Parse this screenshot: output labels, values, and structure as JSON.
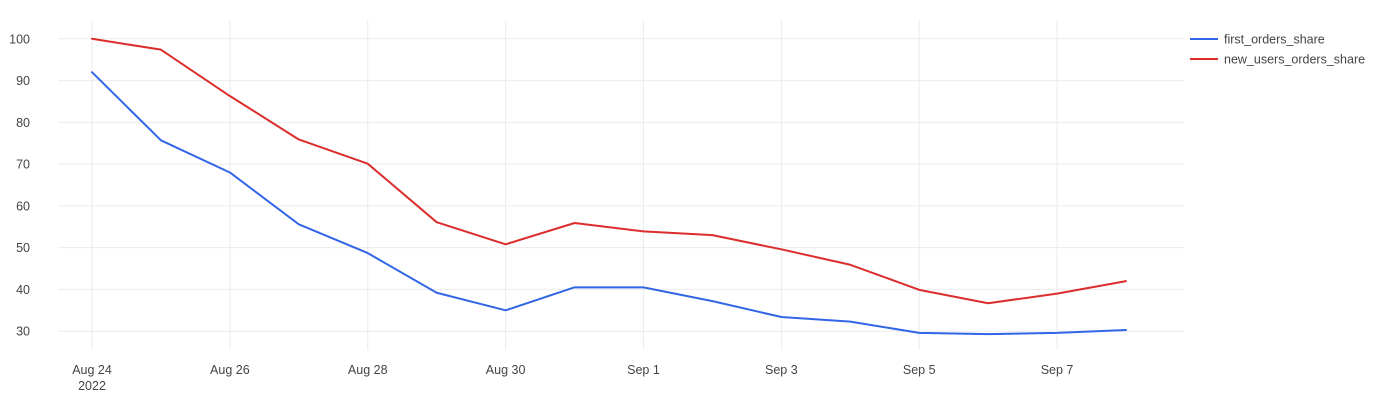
{
  "chart_data": {
    "type": "line",
    "title": "",
    "xlabel": "",
    "ylabel": "",
    "x": [
      "2022-08-24",
      "2022-08-25",
      "2022-08-26",
      "2022-08-27",
      "2022-08-28",
      "2022-08-29",
      "2022-08-30",
      "2022-08-31",
      "2022-09-01",
      "2022-09-02",
      "2022-09-03",
      "2022-09-04",
      "2022-09-05",
      "2022-09-06",
      "2022-09-07",
      "2022-09-08"
    ],
    "xticks": [
      {
        "index": 0,
        "label": "Aug 24",
        "sublabel": "2022"
      },
      {
        "index": 2,
        "label": "Aug 26"
      },
      {
        "index": 4,
        "label": "Aug 28"
      },
      {
        "index": 6,
        "label": "Aug 30"
      },
      {
        "index": 8,
        "label": "Sep 1"
      },
      {
        "index": 10,
        "label": "Sep 3"
      },
      {
        "index": 12,
        "label": "Sep 5"
      },
      {
        "index": 14,
        "label": "Sep 7"
      }
    ],
    "yticks": [
      30,
      40,
      50,
      60,
      70,
      80,
      90,
      100
    ],
    "ylim": [
      25.5,
      104.5
    ],
    "grid": true,
    "legend_position": "top-right",
    "series": [
      {
        "name": "first_orders_share",
        "color": "#3366e6",
        "values": [
          92,
          75.7,
          68,
          55.6,
          48.7,
          39.2,
          35,
          40.5,
          40.5,
          37.2,
          33.4,
          32.3,
          29.6,
          29.3,
          29.6,
          30.3
        ]
      },
      {
        "name": "new_users_orders_share",
        "color": "#dc2d2d",
        "values": [
          100,
          97.4,
          86.3,
          75.9,
          70.1,
          56.1,
          50.8,
          55.9,
          53.9,
          53.0,
          49.6,
          45.9,
          39.9,
          36.7,
          39.0,
          42.0
        ]
      }
    ]
  }
}
